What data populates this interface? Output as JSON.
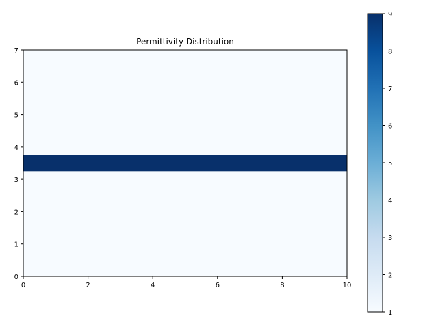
{
  "chart_data": {
    "type": "heatmap",
    "title": "Permittivity Distribution",
    "xlabel": "",
    "ylabel": "",
    "xlim": [
      0,
      10
    ],
    "ylim": [
      0,
      7
    ],
    "x_ticks": [
      "0",
      "2",
      "4",
      "6",
      "8",
      "10"
    ],
    "y_ticks": [
      "0",
      "1",
      "2",
      "3",
      "4",
      "5",
      "6",
      "7"
    ],
    "grid": false,
    "colormap": "Blues",
    "background_value": 1,
    "regions": [
      {
        "x_range": [
          0,
          10
        ],
        "y_range": [
          3.25,
          3.75
        ],
        "value": 9
      }
    ],
    "colorbar": {
      "range": [
        1,
        9
      ],
      "ticks": [
        "1",
        "2",
        "3",
        "4",
        "5",
        "6",
        "7",
        "8",
        "9"
      ],
      "low_color": "#f7fbff",
      "high_color": "#08306b"
    }
  }
}
